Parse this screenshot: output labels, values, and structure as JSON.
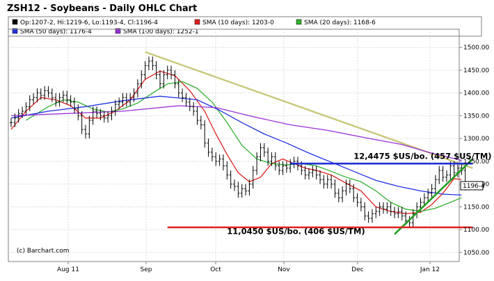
{
  "chart_data": {
    "type": "ohlc",
    "title": "ZSH12 - Soybeans - Daily OHLC Chart",
    "legend": [
      {
        "text": "Op:1207-2, Hi:1219-6, Lo:1193-4, Cl:1196-4",
        "color": "#000000"
      },
      {
        "text": "SMA (10 days): 1203-0",
        "color": "#e02020"
      },
      {
        "text": "SMA (20 days): 1168-6",
        "color": "#30b030"
      },
      {
        "text": "SMA (50 days): 1176-4",
        "color": "#2030e0"
      },
      {
        "text": "SMA (100 days): 1252-1",
        "color": "#9a30d8"
      }
    ],
    "credit": "(c) Barchart.com",
    "x_labels": [
      "Aug 11",
      "Sep",
      "Oct",
      "Nov",
      "Dec",
      "Jan 12"
    ],
    "y_ticks": [
      1050,
      1100,
      1150,
      1200,
      1250,
      1300,
      1350,
      1400,
      1450,
      1500
    ],
    "ylim": [
      1030,
      1540
    ],
    "last_price_label": "1196-4",
    "last_price": 1196.5,
    "close": [
      1335,
      1345,
      1355,
      1360,
      1370,
      1385,
      1390,
      1400,
      1395,
      1405,
      1400,
      1390,
      1380,
      1390,
      1395,
      1385,
      1380,
      1365,
      1350,
      1320,
      1310,
      1340,
      1360,
      1355,
      1350,
      1345,
      1350,
      1360,
      1375,
      1380,
      1390,
      1380,
      1390,
      1400,
      1420,
      1440,
      1460,
      1470,
      1460,
      1440,
      1420,
      1440,
      1450,
      1440,
      1420,
      1400,
      1390,
      1380,
      1370,
      1360,
      1340,
      1330,
      1290,
      1270,
      1260,
      1250,
      1255,
      1240,
      1220,
      1200,
      1195,
      1180,
      1190,
      1185,
      1200,
      1230,
      1260,
      1280,
      1270,
      1250,
      1260,
      1240,
      1230,
      1240,
      1235,
      1245,
      1250,
      1240,
      1230,
      1220,
      1225,
      1230,
      1220,
      1210,
      1200,
      1210,
      1200,
      1180,
      1170,
      1185,
      1200,
      1190,
      1170,
      1160,
      1150,
      1130,
      1125,
      1135,
      1140,
      1150,
      1145,
      1150,
      1140,
      1135,
      1140,
      1130,
      1120,
      1115,
      1135,
      1150,
      1160,
      1170,
      1180,
      1190,
      1210,
      1230,
      1215,
      1220,
      1240,
      1225,
      1235,
      1230,
      1196
    ],
    "series": [
      {
        "name": "SMA (10 days)",
        "color": "#e02020",
        "points": [
          [
            0,
            1320
          ],
          [
            4,
            1360
          ],
          [
            8,
            1390
          ],
          [
            12,
            1385
          ],
          [
            16,
            1372
          ],
          [
            20,
            1345
          ],
          [
            24,
            1345
          ],
          [
            28,
            1360
          ],
          [
            32,
            1385
          ],
          [
            36,
            1430
          ],
          [
            40,
            1448
          ],
          [
            44,
            1438
          ],
          [
            48,
            1405
          ],
          [
            52,
            1360
          ],
          [
            55,
            1310
          ],
          [
            58,
            1265
          ],
          [
            61,
            1225
          ],
          [
            64,
            1205
          ],
          [
            67,
            1215
          ],
          [
            70,
            1245
          ],
          [
            73,
            1255
          ],
          [
            76,
            1245
          ],
          [
            79,
            1235
          ],
          [
            82,
            1230
          ],
          [
            86,
            1220
          ],
          [
            90,
            1202
          ],
          [
            94,
            1185
          ],
          [
            98,
            1150
          ],
          [
            102,
            1140
          ],
          [
            106,
            1135
          ],
          [
            110,
            1138
          ],
          [
            113,
            1155
          ],
          [
            116,
            1180
          ],
          [
            119,
            1212
          ],
          [
            121,
            1210
          ]
        ]
      },
      {
        "name": "SMA (20 days)",
        "color": "#30b030",
        "points": [
          [
            4,
            1340
          ],
          [
            10,
            1370
          ],
          [
            14,
            1385
          ],
          [
            18,
            1380
          ],
          [
            22,
            1365
          ],
          [
            26,
            1358
          ],
          [
            30,
            1365
          ],
          [
            34,
            1378
          ],
          [
            38,
            1400
          ],
          [
            42,
            1420
          ],
          [
            46,
            1425
          ],
          [
            50,
            1410
          ],
          [
            54,
            1380
          ],
          [
            58,
            1335
          ],
          [
            62,
            1285
          ],
          [
            66,
            1255
          ],
          [
            70,
            1245
          ],
          [
            74,
            1242
          ],
          [
            78,
            1245
          ],
          [
            82,
            1240
          ],
          [
            86,
            1228
          ],
          [
            90,
            1215
          ],
          [
            94,
            1205
          ],
          [
            98,
            1185
          ],
          [
            102,
            1160
          ],
          [
            106,
            1145
          ],
          [
            110,
            1140
          ],
          [
            114,
            1147
          ],
          [
            118,
            1160
          ],
          [
            121,
            1170
          ]
        ]
      },
      {
        "name": "SMA (50 days)",
        "color": "#2030e0",
        "points": [
          [
            0,
            1345
          ],
          [
            10,
            1360
          ],
          [
            20,
            1370
          ],
          [
            30,
            1383
          ],
          [
            40,
            1393
          ],
          [
            50,
            1385
          ],
          [
            56,
            1362
          ],
          [
            62,
            1335
          ],
          [
            68,
            1310
          ],
          [
            74,
            1290
          ],
          [
            80,
            1268
          ],
          [
            86,
            1248
          ],
          [
            92,
            1228
          ],
          [
            98,
            1208
          ],
          [
            104,
            1195
          ],
          [
            110,
            1185
          ],
          [
            116,
            1178
          ],
          [
            121,
            1176
          ]
        ]
      },
      {
        "name": "SMA (100 days)",
        "color": "#9a30d8",
        "points": [
          [
            0,
            1350
          ],
          [
            15,
            1355
          ],
          [
            30,
            1360
          ],
          [
            45,
            1372
          ],
          [
            55,
            1368
          ],
          [
            65,
            1348
          ],
          [
            75,
            1330
          ],
          [
            85,
            1318
          ],
          [
            95,
            1302
          ],
          [
            105,
            1287
          ],
          [
            112,
            1270
          ],
          [
            118,
            1258
          ],
          [
            121,
            1252
          ]
        ]
      }
    ],
    "trendlines": [
      {
        "color": "#c8c87a",
        "from": [
          36,
          1490
        ],
        "to": [
          124,
          1235
        ]
      },
      {
        "color": "#20a020",
        "from": [
          103,
          1090
        ],
        "to": [
          124,
          1255
        ]
      },
      {
        "color": "#1f2fd8",
        "from": [
          75,
          1245
        ],
        "to": [
          124,
          1245
        ]
      },
      {
        "color": "#e02020",
        "from": [
          42,
          1105
        ],
        "to": [
          124,
          1105
        ]
      }
    ],
    "annotations": [
      {
        "text": "12,4475 $US/bo. (457 $US/TM)",
        "x": 92,
        "y": 1255
      },
      {
        "text": "11,0450 $US/bo. (406 $US/TM)",
        "x": 58,
        "y": 1090
      }
    ]
  }
}
